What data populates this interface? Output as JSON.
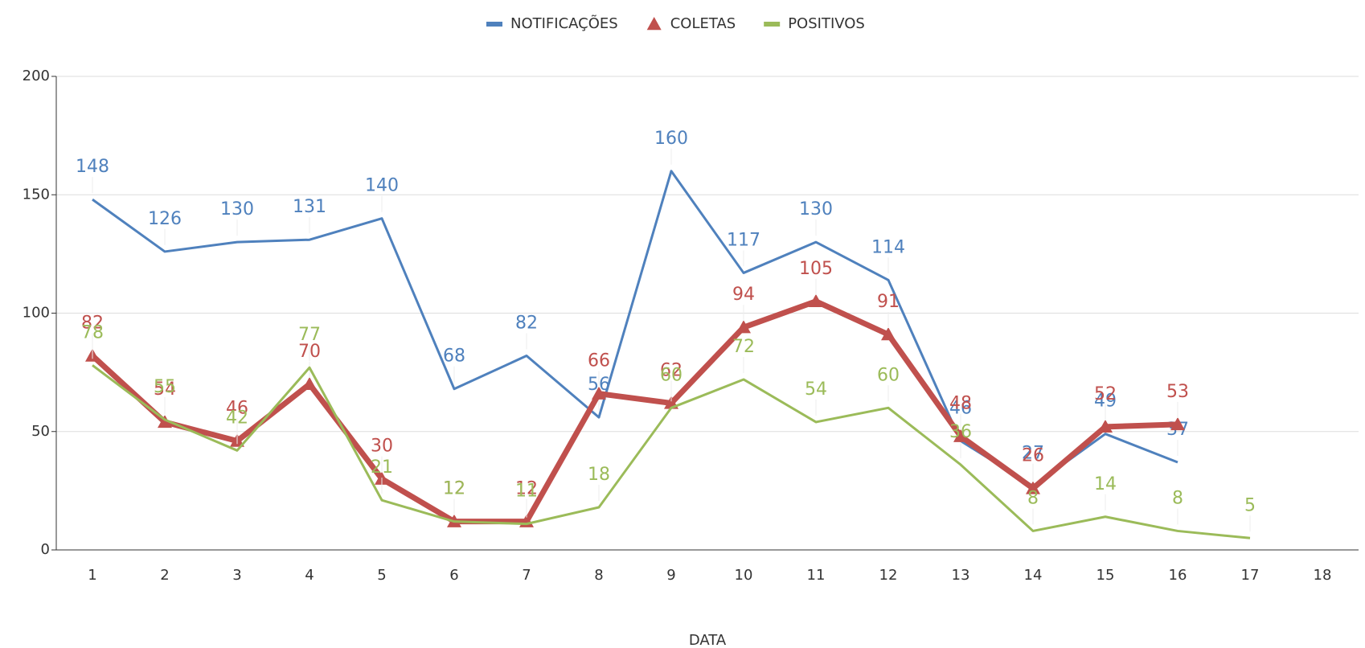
{
  "chart_data": {
    "type": "line",
    "x_label": "DATA",
    "categories": [
      "1",
      "2",
      "3",
      "4",
      "5",
      "6",
      "7",
      "8",
      "9",
      "10",
      "11",
      "12",
      "13",
      "14",
      "15",
      "16",
      "17",
      "18"
    ],
    "series": [
      {
        "name": "NOTIFICAÇÕES",
        "color": "#4f81bd",
        "marker": "none",
        "values": [
          148,
          126,
          130,
          131,
          140,
          68,
          82,
          56,
          160,
          117,
          130,
          114,
          46,
          27,
          49,
          37,
          null,
          null
        ]
      },
      {
        "name": "COLETAS",
        "color": "#c0504d",
        "marker": "triangle",
        "values": [
          82,
          54,
          46,
          70,
          30,
          12,
          12,
          66,
          62,
          94,
          105,
          91,
          48,
          26,
          52,
          53,
          null,
          null
        ]
      },
      {
        "name": "POSITIVOS",
        "color": "#9bbb59",
        "marker": "none",
        "values": [
          78,
          55,
          42,
          77,
          21,
          12,
          11,
          18,
          60,
          72,
          54,
          60,
          36,
          8,
          14,
          8,
          5,
          null
        ]
      }
    ],
    "ylim": [
      0,
      200
    ],
    "yticks": [
      0,
      50,
      100,
      150,
      200
    ],
    "grid": true,
    "legend": "top"
  }
}
